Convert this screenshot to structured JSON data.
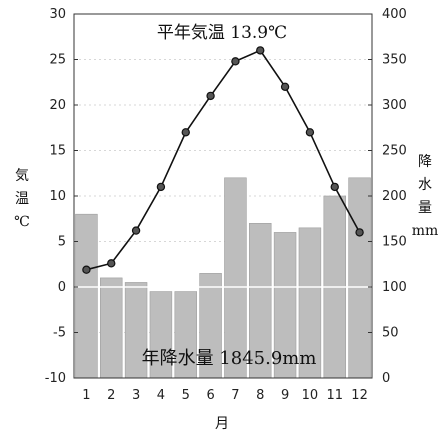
{
  "chart_data": {
    "type": "climograph",
    "title": "平年気温 13.9℃",
    "annotation": "年降水量 1845.9mm",
    "xlabel": "月",
    "ylabel_left": [
      "気",
      "温",
      "℃"
    ],
    "ylabel_right": [
      "降",
      "水",
      "量",
      "mm"
    ],
    "categories": [
      "1",
      "2",
      "3",
      "4",
      "5",
      "6",
      "7",
      "8",
      "9",
      "10",
      "11",
      "12"
    ],
    "temperature": {
      "ylim": [
        -10,
        30
      ],
      "ticks": [
        -10,
        -5,
        0,
        5,
        10,
        15,
        20,
        25,
        30
      ],
      "values": [
        1.9,
        2.6,
        6.2,
        11.0,
        17.0,
        21.0,
        24.8,
        26.0,
        22.0,
        17.0,
        11.0,
        6.0
      ]
    },
    "precipitation": {
      "ylim": [
        0,
        400
      ],
      "ticks": [
        0,
        50,
        100,
        150,
        200,
        250,
        300,
        350,
        400
      ],
      "values": [
        180,
        110,
        105,
        95,
        95,
        115,
        220,
        170,
        160,
        165,
        200,
        220
      ]
    },
    "colors": {
      "bars": "#bdbdbd",
      "line": "#111111",
      "zero_line": "#ffffff",
      "grid": "#d7d7d7"
    }
  }
}
